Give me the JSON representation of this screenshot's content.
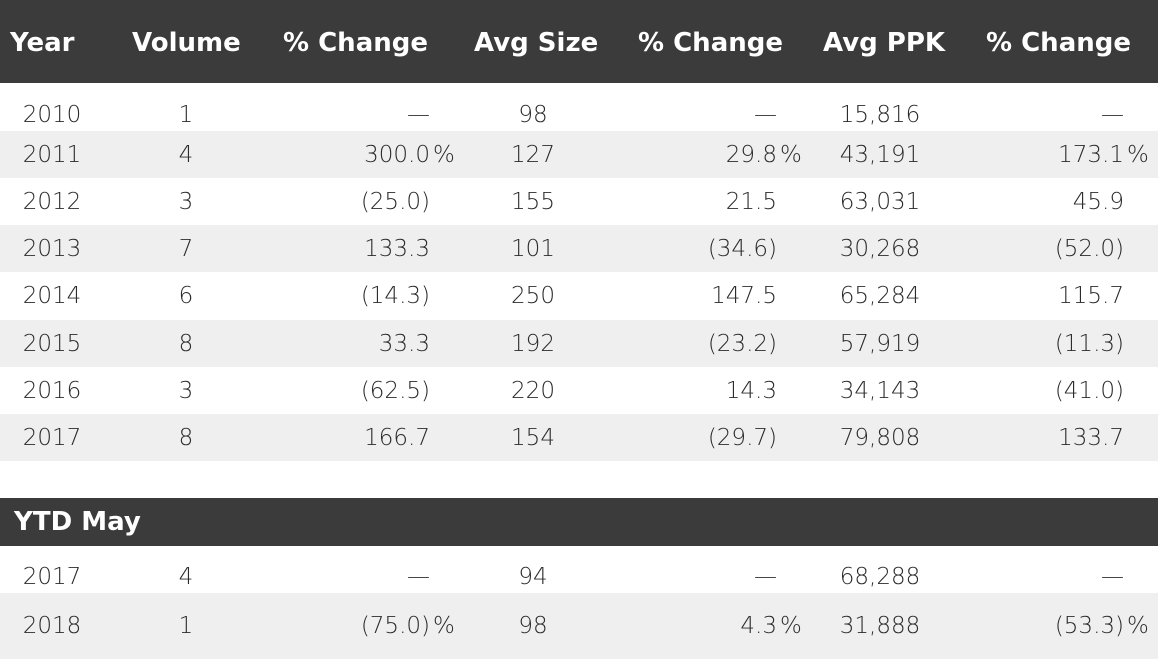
{
  "header": {
    "year": "Year",
    "volume": "Volume",
    "change1": "% Change",
    "avg_size": "Avg Size",
    "change2": "% Change",
    "avg_ppk": "Avg PPK",
    "change3": "% Change"
  },
  "rows": [
    {
      "year": "2010",
      "volume": "1",
      "change1": "—",
      "avg_size": "98",
      "change2": "—",
      "avg_ppk": "15,816",
      "change3": "—"
    },
    {
      "year": "2011",
      "volume": "4",
      "change1": "300.0",
      "avg_size": "127",
      "change2": "29.8",
      "avg_ppk": "43,191",
      "change3": "173.1"
    },
    {
      "year": "2012",
      "volume": "3",
      "change1": "(25.0)",
      "avg_size": "155",
      "change2": "21.5",
      "avg_ppk": "63,031",
      "change3": "45.9"
    },
    {
      "year": "2013",
      "volume": "7",
      "change1": "133.3",
      "avg_size": "101",
      "change2": "(34.6)",
      "avg_ppk": "30,268",
      "change3": "(52.0)"
    },
    {
      "year": "2014",
      "volume": "6",
      "change1": "(14.3)",
      "avg_size": "250",
      "change2": "147.5",
      "avg_ppk": "65,284",
      "change3": "115.7"
    },
    {
      "year": "2015",
      "volume": "8",
      "change1": "33.3",
      "avg_size": "192",
      "change2": "(23.2)",
      "avg_ppk": "57,919",
      "change3": "(11.3)"
    },
    {
      "year": "2016",
      "volume": "3",
      "change1": "(62.5)",
      "avg_size": "220",
      "change2": "14.3",
      "avg_ppk": "34,143",
      "change3": "(41.0)"
    },
    {
      "year": "2017",
      "volume": "8",
      "change1": "166.7",
      "avg_size": "154",
      "change2": "(29.7)",
      "avg_ppk": "79,808",
      "change3": "133.7"
    }
  ],
  "ytd": {
    "title": "YTD May",
    "rows": [
      {
        "year": "2017",
        "volume": "4",
        "change1": "—",
        "avg_size": "94",
        "change2": "—",
        "avg_ppk": "68,288",
        "change3": "—"
      },
      {
        "year": "2018",
        "volume": "1",
        "change1": "(75.0)",
        "avg_size": "98",
        "change2": "4.3",
        "avg_ppk": "31,888",
        "change3": "(53.3)"
      }
    ]
  },
  "percent_sign": "%"
}
